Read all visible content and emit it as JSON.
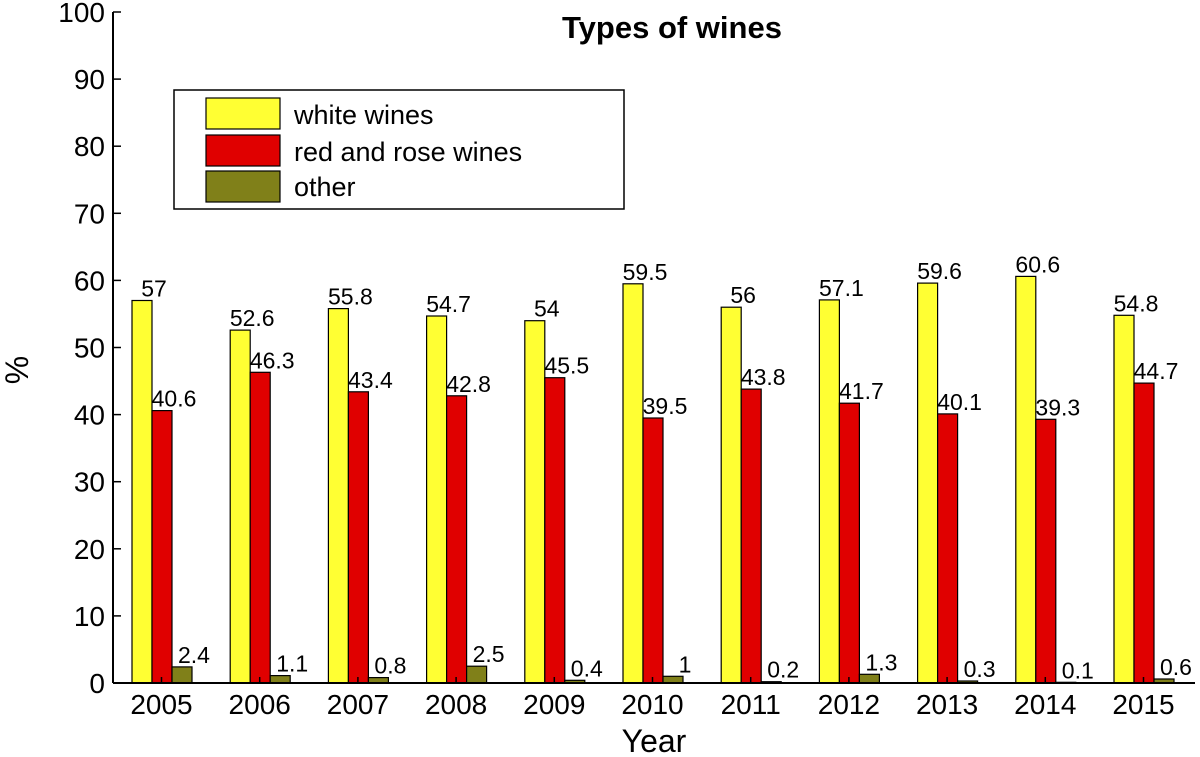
{
  "chart_data": {
    "type": "bar",
    "title": "Types of wines",
    "xlabel": "Year",
    "ylabel": "%",
    "ylim": [
      0,
      100
    ],
    "yticks": [
      "0",
      "10",
      "20",
      "30",
      "40",
      "50",
      "60",
      "70",
      "80",
      "90",
      "100"
    ],
    "categories": [
      "2005",
      "2006",
      "2007",
      "2008",
      "2009",
      "2010",
      "2011",
      "2012",
      "2013",
      "2014",
      "2015"
    ],
    "grid": false,
    "legend_position": "top-left",
    "series": [
      {
        "name": "white wines",
        "color": "#ffff33",
        "values": [
          57,
          52.6,
          55.8,
          54.7,
          54,
          59.5,
          56,
          57.1,
          59.6,
          60.6,
          54.8
        ],
        "labels": [
          "57",
          "52.6",
          "55.8",
          "54.7",
          "54",
          "59.5",
          "56",
          "57.1",
          "59.6",
          "60.6",
          "54.8"
        ]
      },
      {
        "name": "red and rose wines",
        "color": "#e00000",
        "values": [
          40.6,
          46.3,
          43.4,
          42.8,
          45.5,
          39.5,
          43.8,
          41.7,
          40.1,
          39.3,
          44.7
        ],
        "labels": [
          "40.6",
          "46.3",
          "43.4",
          "42.8",
          "45.5",
          "39.5",
          "43.8",
          "41.7",
          "40.1",
          "39.3",
          "44.7"
        ]
      },
      {
        "name": "other",
        "color": "#808019",
        "values": [
          2.4,
          1.1,
          0.8,
          2.5,
          0.4,
          1,
          0.2,
          1.3,
          0.3,
          0.1,
          0.6
        ],
        "labels": [
          "2.4",
          "1.1",
          "0.8",
          "2.5",
          "0.4",
          "1",
          "0.2",
          "1.3",
          "0.3",
          "0.1",
          "0.6"
        ]
      }
    ]
  }
}
